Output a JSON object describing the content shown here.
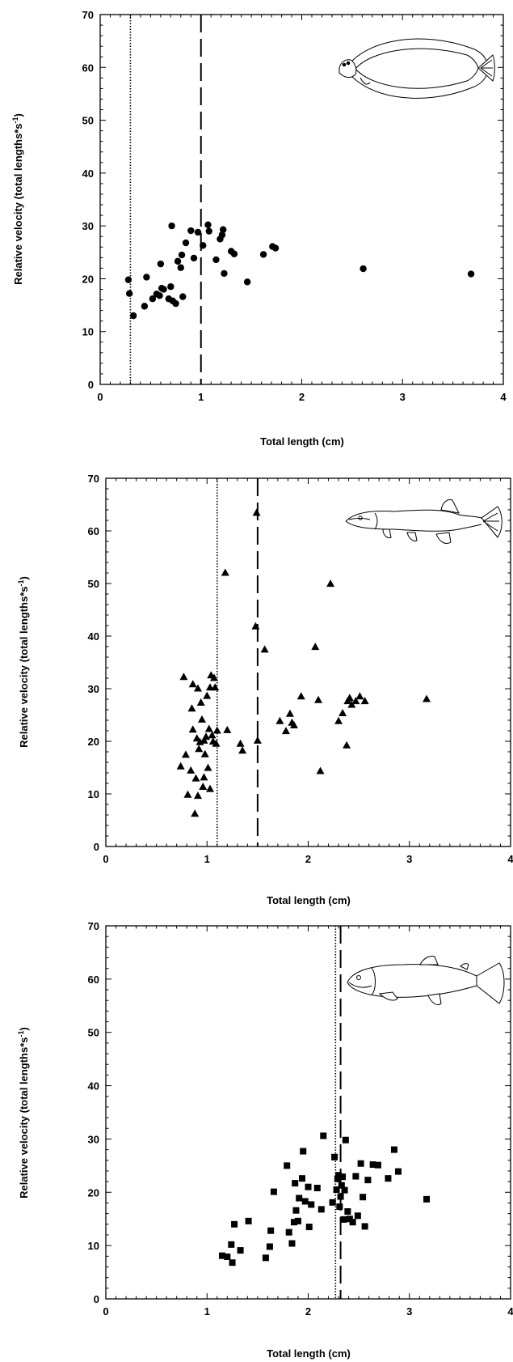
{
  "chart_data": [
    {
      "type": "scatter",
      "marker": "circle",
      "xlabel": "Total length (cm)",
      "ylabel": "Relative velocity (total lengths*s",
      "ylabel_sup": "-1",
      "ylabel_close": ")",
      "xlim": [
        0,
        4
      ],
      "ylim": [
        0,
        70
      ],
      "xticks": [
        0,
        1,
        2,
        3,
        4
      ],
      "yticks": [
        0,
        10,
        20,
        30,
        40,
        50,
        60,
        70
      ],
      "vlines": [
        {
          "x": 0.3,
          "style": "dotted"
        },
        {
          "x": 1.0,
          "style": "dashed"
        }
      ],
      "illustration": "flatfish-icon",
      "x": [
        0.28,
        0.29,
        0.33,
        0.44,
        0.46,
        0.52,
        0.56,
        0.59,
        0.6,
        0.61,
        0.63,
        0.68,
        0.7,
        0.71,
        0.72,
        0.75,
        0.77,
        0.8,
        0.81,
        0.82,
        0.85,
        0.9,
        0.93,
        0.97,
        1.02,
        1.07,
        1.08,
        1.15,
        1.19,
        1.21,
        1.22,
        1.23,
        1.3,
        1.33,
        1.46,
        1.62,
        1.71,
        1.74,
        2.61,
        3.68
      ],
      "y": [
        19.8,
        17.2,
        13.0,
        14.8,
        20.3,
        16.2,
        17.1,
        16.8,
        22.8,
        18.2,
        18.0,
        16.2,
        18.5,
        30.0,
        15.8,
        15.3,
        23.3,
        22.1,
        24.5,
        16.6,
        26.8,
        29.1,
        23.9,
        28.8,
        26.3,
        30.2,
        29.0,
        23.6,
        27.5,
        28.3,
        29.3,
        21.0,
        25.2,
        24.7,
        19.4,
        24.6,
        26.1,
        25.8,
        21.9,
        20.9
      ]
    },
    {
      "type": "scatter",
      "marker": "triangle",
      "xlabel": "Total length (cm)",
      "ylabel": "Relative velocity (total lengths*s",
      "ylabel_sup": "-1",
      "ylabel_close": ")",
      "xlim": [
        0,
        4
      ],
      "ylim": [
        0,
        70
      ],
      "xticks": [
        0,
        1,
        2,
        3,
        4
      ],
      "yticks": [
        0,
        10,
        20,
        30,
        40,
        50,
        60,
        70
      ],
      "vlines": [
        {
          "x": 1.1,
          "style": "dotted"
        },
        {
          "x": 1.5,
          "style": "dashed"
        }
      ],
      "illustration": "pike-icon",
      "x": [
        0.77,
        0.79,
        0.81,
        0.84,
        0.86,
        0.86,
        0.88,
        0.89,
        0.9,
        0.91,
        0.92,
        0.93,
        0.94,
        0.95,
        0.96,
        0.97,
        0.98,
        0.99,
        1.0,
        1.01,
        1.02,
        1.03,
        1.04,
        1.05,
        1.06,
        1.07,
        1.08,
        1.09,
        1.1,
        0.74,
        0.85,
        0.91,
        0.97,
        1.03,
        1.18,
        1.2,
        1.33,
        1.35,
        1.48,
        1.49,
        1.5,
        1.57,
        1.72,
        1.78,
        1.82,
        1.84,
        1.86,
        1.93,
        2.07,
        2.1,
        2.12,
        2.22,
        2.3,
        2.34,
        2.38,
        2.39,
        2.41,
        2.43,
        2.47,
        2.51,
        2.56,
        3.17
      ],
      "y": [
        32.2,
        17.4,
        9.8,
        14.4,
        22.2,
        30.8,
        6.2,
        12.9,
        20.5,
        9.6,
        18.5,
        19.8,
        27.3,
        24.1,
        11.3,
        20.1,
        17.5,
        20.8,
        28.6,
        14.9,
        22.3,
        30.2,
        32.5,
        21.1,
        19.9,
        32.0,
        30.2,
        19.5,
        22.0,
        15.2,
        26.2,
        30.0,
        13.1,
        10.9,
        52.0,
        22.1,
        19.5,
        18.2,
        41.8,
        63.4,
        20.1,
        37.4,
        23.8,
        21.9,
        25.2,
        23.5,
        23.0,
        28.5,
        37.9,
        27.8,
        14.3,
        49.9,
        23.8,
        25.3,
        19.2,
        27.6,
        28.2,
        26.9,
        27.6,
        28.5,
        27.6,
        28.0
      ]
    },
    {
      "type": "scatter",
      "marker": "square",
      "xlabel": "Total length (cm)",
      "ylabel": "Relative velocity (total lengths*s",
      "ylabel_sup": "-1",
      "ylabel_close": ")",
      "xlim": [
        0,
        4
      ],
      "ylim": [
        0,
        70
      ],
      "xticks": [
        0,
        1,
        2,
        3,
        4
      ],
      "yticks": [
        0,
        10,
        20,
        30,
        40,
        50,
        60,
        70
      ],
      "vlines": [
        {
          "x": 2.27,
          "style": "dotted"
        },
        {
          "x": 2.32,
          "style": "dashed"
        }
      ],
      "illustration": "salmon-icon",
      "x": [
        1.15,
        1.2,
        1.24,
        1.25,
        1.27,
        1.33,
        1.41,
        1.58,
        1.62,
        1.63,
        1.66,
        1.79,
        1.81,
        1.84,
        1.86,
        1.87,
        1.88,
        1.9,
        1.91,
        1.94,
        1.95,
        1.97,
        2.0,
        2.01,
        2.03,
        2.09,
        2.13,
        2.15,
        2.24,
        2.26,
        2.28,
        2.29,
        2.3,
        2.31,
        2.32,
        2.33,
        2.34,
        2.35,
        2.36,
        2.37,
        2.39,
        2.41,
        2.44,
        2.47,
        2.49,
        2.52,
        2.54,
        2.56,
        2.59,
        2.64,
        2.69,
        2.79,
        2.85,
        2.89,
        3.17
      ],
      "y": [
        8.1,
        7.9,
        10.2,
        6.8,
        14.0,
        9.1,
        14.6,
        7.7,
        9.8,
        12.8,
        20.1,
        25.0,
        12.5,
        10.4,
        14.4,
        21.7,
        16.6,
        14.6,
        18.9,
        22.6,
        27.7,
        18.3,
        21.0,
        13.5,
        17.7,
        20.8,
        16.8,
        30.6,
        18.1,
        26.6,
        20.5,
        22.5,
        23.2,
        17.3,
        19.2,
        21.3,
        22.9,
        14.9,
        20.4,
        29.8,
        16.4,
        15.0,
        14.4,
        23.0,
        15.6,
        25.4,
        19.1,
        13.6,
        22.3,
        25.2,
        25.1,
        22.6,
        28.0,
        23.9,
        18.7
      ]
    }
  ]
}
